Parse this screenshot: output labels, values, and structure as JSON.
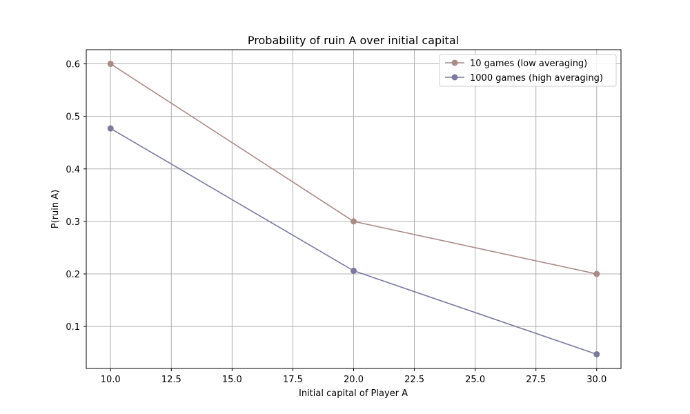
{
  "chart_data": {
    "type": "line",
    "title": "Probability of ruin A over initial capital",
    "xlabel": "Initial capital of Player A",
    "ylabel": "P(ruin A)",
    "xlim": [
      9.0,
      31.0
    ],
    "ylim": [
      0.02,
      0.627
    ],
    "xticks": [
      "10.0",
      "12.5",
      "15.0",
      "17.5",
      "20.0",
      "22.5",
      "25.0",
      "27.5",
      "30.0"
    ],
    "yticks": [
      "0.1",
      "0.2",
      "0.3",
      "0.4",
      "0.5",
      "0.6"
    ],
    "grid": true,
    "legend_position": "top-right",
    "x": [
      10,
      20,
      30
    ],
    "series": [
      {
        "name": "10 games (low averaging)",
        "values": [
          0.6,
          0.3,
          0.2
        ],
        "color": "#a98a87"
      },
      {
        "name": "1000 games (high averaging)",
        "values": [
          0.477,
          0.206,
          0.047
        ],
        "color": "#7a7aa0"
      }
    ]
  }
}
